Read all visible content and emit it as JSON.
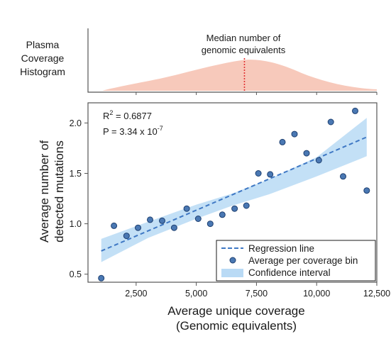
{
  "colors": {
    "histogram_fill": "#f7c9bb",
    "median_line": "#e03030",
    "band": "#b9daf5",
    "regression": "#3f78c4",
    "point_fill": "#4a78b3",
    "point_edge": "#1d3f70"
  },
  "histogram": {
    "label_lines": [
      "Plasma",
      "Coverage",
      "Histogram"
    ],
    "annotation_lines": [
      "Median number of",
      "genomic equivalents"
    ],
    "median_x": 7000
  },
  "chart_data": {
    "type": "scatter",
    "xlabel_lines": [
      "Average unique coverage",
      "(Genomic equivalents)"
    ],
    "ylabel_lines": [
      "Average number of",
      "detected mutations"
    ],
    "xlim": [
      500,
      12500
    ],
    "ylim": [
      0.42,
      2.2
    ],
    "xticks": [
      2500,
      5000,
      7500,
      10000,
      12500
    ],
    "xtick_labels": [
      "2,500",
      "5,000",
      "7,500",
      "10,000",
      "12,500"
    ],
    "yticks": [
      0.5,
      1.0,
      1.5,
      2.0
    ],
    "ytick_labels": [
      "0.5",
      "1.0",
      "1.5",
      "2.0"
    ],
    "stats": {
      "r2_base": "R",
      "r2_sup": "2",
      "r2_value": " = 0.6877",
      "p_base": "P = 3.34 x 10",
      "p_sup": "-7"
    },
    "series": [
      {
        "name": "Average per coverage bin",
        "x": [
          1050,
          1580,
          2100,
          2580,
          3080,
          3580,
          4080,
          4600,
          5080,
          5580,
          6080,
          6590,
          7080,
          7580,
          8070,
          8580,
          9080,
          9580,
          10090,
          10590,
          11100,
          11600,
          12080
        ],
        "y": [
          0.46,
          0.98,
          0.88,
          0.96,
          1.04,
          1.03,
          0.96,
          1.15,
          1.05,
          1.0,
          1.09,
          1.15,
          1.18,
          1.5,
          1.49,
          1.81,
          1.89,
          1.7,
          1.63,
          2.01,
          1.47,
          2.12,
          1.33
        ]
      }
    ],
    "regression": {
      "name": "Regression line",
      "x_range": [
        1050,
        12080
      ],
      "y_range": [
        0.73,
        1.86
      ]
    },
    "confidence_band": {
      "name": "Confidence interval",
      "x": [
        1050,
        3000,
        5000,
        6500,
        8000,
        10000,
        12080
      ],
      "lower": [
        0.62,
        0.86,
        1.05,
        1.18,
        1.29,
        1.47,
        1.67
      ],
      "upper": [
        0.85,
        1.02,
        1.19,
        1.3,
        1.44,
        1.66,
        2.05
      ]
    },
    "legend": {
      "placement": "bottom-right",
      "entries": [
        "Regression line",
        "Average per coverage bin",
        "Confidence interval"
      ]
    },
    "grid": false
  }
}
